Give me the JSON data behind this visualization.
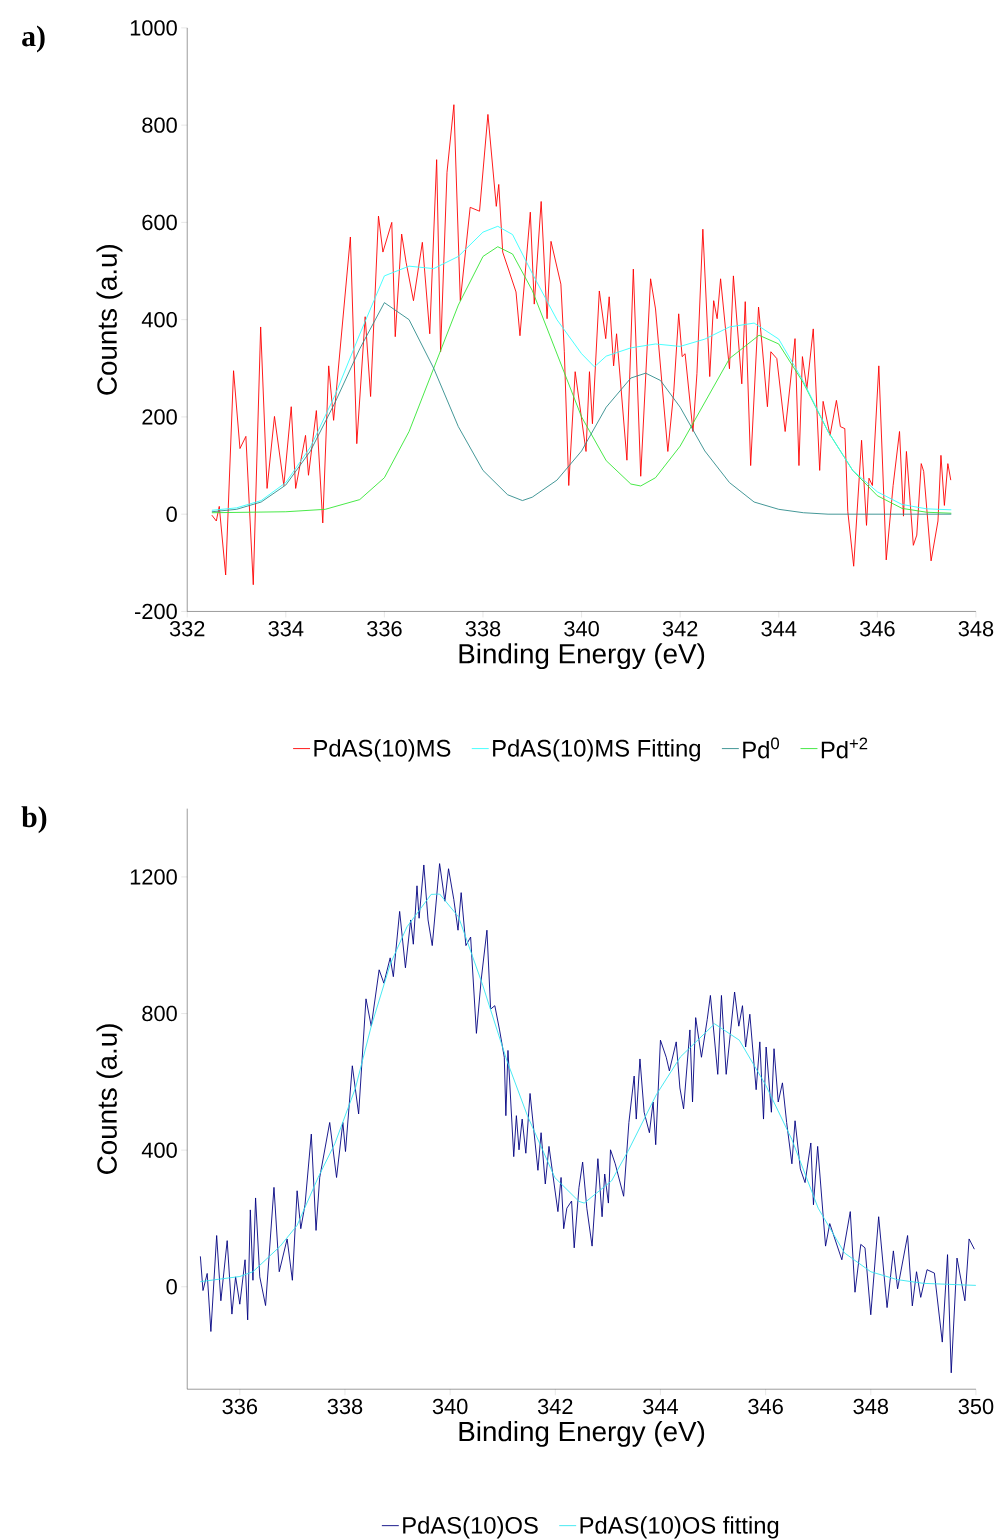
{
  "chart_data": [
    {
      "type": "line",
      "title": "a)",
      "xlabel": "Binding Energy (eV)",
      "ylabel": "Counts (a.u)",
      "xlim": [
        332,
        348
      ],
      "ylim": [
        -200,
        1000
      ],
      "xticks": [
        332,
        334,
        336,
        338,
        340,
        342,
        344,
        346,
        348
      ],
      "yticks": [
        -200,
        0,
        200,
        400,
        600,
        800,
        1000
      ],
      "legend": "bottom",
      "series": [
        {
          "name": "PdAS(10)MS",
          "color": "#ff0000",
          "x": [
            332.5,
            332.59,
            332.65,
            332.78,
            332.94,
            333.07,
            333.19,
            333.34,
            333.49,
            333.62,
            333.77,
            333.96,
            334.11,
            334.2,
            334.4,
            334.46,
            334.62,
            334.75,
            334.87,
            334.97,
            335.31,
            335.44,
            335.61,
            335.72,
            335.88,
            335.97,
            336.15,
            336.22,
            336.35,
            336.44,
            336.59,
            336.77,
            336.92,
            337.06,
            337.14,
            337.27,
            337.41,
            337.54,
            337.74,
            337.93,
            338.1,
            338.27,
            338.32,
            338.4,
            338.67,
            338.75,
            338.96,
            339.04,
            339.18,
            339.3,
            339.38,
            339.58,
            339.65,
            339.74,
            339.87,
            340.09,
            340.16,
            340.22,
            340.36,
            340.49,
            340.56,
            340.65,
            340.71,
            340.92,
            341.05,
            341.2,
            341.4,
            341.5,
            341.75,
            341.87,
            341.97,
            342.04,
            342.1,
            342.26,
            342.34,
            342.46,
            342.6,
            342.68,
            342.75,
            342.82,
            343.0,
            343.08,
            343.25,
            343.32,
            343.43,
            343.59,
            343.66,
            343.77,
            343.84,
            343.96,
            344.13,
            344.33,
            344.41,
            344.48,
            344.57,
            344.7,
            344.83,
            344.9,
            345.04,
            345.17,
            345.25,
            345.34,
            345.4,
            345.52,
            345.68,
            345.78,
            345.83,
            345.9,
            346.03,
            346.18,
            346.32,
            346.45,
            346.53,
            346.59,
            346.73,
            346.8,
            346.89,
            346.94,
            347.09,
            347.23,
            347.29,
            347.36,
            347.43,
            347.49
          ],
          "values": [
            -2,
            -14,
            16,
            -125,
            295,
            135,
            160,
            -145,
            385,
            53,
            201,
            59,
            221,
            53,
            162,
            80,
            213,
            -18,
            305,
            193,
            570,
            145,
            406,
            242,
            613,
            539,
            600,
            365,
            576,
            518,
            439,
            559,
            371,
            729,
            334,
            703,
            842,
            439,
            631,
            623,
            822,
            633,
            678,
            539,
            457,
            367,
            621,
            432,
            643,
            402,
            561,
            473,
            334,
            59,
            293,
            129,
            293,
            186,
            459,
            361,
            447,
            305,
            371,
            111,
            504,
            78,
            484,
            422,
            129,
            252,
            412,
            324,
            330,
            170,
            289,
            586,
            283,
            439,
            402,
            484,
            299,
            490,
            268,
            437,
            100,
            426,
            350,
            221,
            334,
            320,
            170,
            361,
            100,
            324,
            258,
            381,
            90,
            232,
            162,
            234,
            180,
            176,
            6,
            -107,
            152,
            -23,
            74,
            59,
            305,
            -94,
            59,
            170,
            -4,
            129,
            -64,
            -43,
            104,
            88,
            -96,
            -14,
            121,
            18,
            104,
            70
          ]
        },
        {
          "name": "PdAS(10)MS Fitting",
          "color": "#33ffff",
          "x": [
            332.5,
            333,
            333.5,
            334,
            334.5,
            335,
            335.5,
            336,
            336.5,
            337,
            337.5,
            338,
            338.3,
            338.6,
            339,
            339.5,
            340,
            340.26,
            340.5,
            341,
            341.5,
            342,
            342.5,
            343,
            343.5,
            344,
            344.5,
            345,
            345.5,
            346,
            346.5,
            347,
            347.5
          ],
          "values": [
            8,
            13,
            28,
            65,
            138,
            245,
            370,
            490,
            510,
            505,
            530,
            580,
            592,
            575,
            495,
            400,
            330,
            303,
            325,
            342,
            350,
            345,
            360,
            385,
            393,
            360,
            273,
            170,
            90,
            46,
            20,
            11,
            9
          ]
        },
        {
          "name": "Pd$^{0}$",
          "color": "#2e8b8b",
          "x": [
            332.5,
            333,
            333.5,
            334,
            334.5,
            335,
            335.5,
            336,
            336.5,
            337,
            337.5,
            338,
            338.5,
            338.8,
            339,
            339.5,
            340,
            340.5,
            341,
            341.3,
            341.6,
            342,
            342.5,
            343,
            343.5,
            344,
            344.5,
            345,
            346,
            347.5
          ],
          "values": [
            5,
            10,
            25,
            60,
            130,
            230,
            340,
            435,
            400,
            300,
            180,
            90,
            40,
            28,
            35,
            70,
            130,
            220,
            280,
            290,
            275,
            220,
            130,
            65,
            25,
            10,
            3,
            0,
            0,
            0
          ]
        },
        {
          "name": "Pd$^{+2}$",
          "color": "#33e633",
          "x": [
            332.5,
            334,
            334.8,
            335.5,
            336,
            336.5,
            337,
            337.5,
            338,
            338.3,
            338.6,
            339,
            339.5,
            340,
            340.5,
            341,
            341.2,
            341.5,
            342,
            342.5,
            343,
            343.6,
            344,
            344.5,
            345,
            345.5,
            346,
            346.5,
            347,
            347.5
          ],
          "values": [
            3,
            5,
            10,
            30,
            75,
            170,
            300,
            430,
            530,
            550,
            535,
            460,
            330,
            200,
            110,
            62,
            58,
            75,
            140,
            230,
            320,
            368,
            350,
            270,
            170,
            90,
            38,
            12,
            4,
            2
          ]
        }
      ]
    },
    {
      "type": "line",
      "title": "b)",
      "xlabel": "Binding Energy (eV)",
      "ylabel": "Counts (a.u)",
      "xlim": [
        335,
        350
      ],
      "ylim": [
        -300,
        1400
      ],
      "xticks": [
        336,
        338,
        340,
        342,
        344,
        346,
        348,
        350
      ],
      "yticks": [
        0,
        400,
        800,
        1200
      ],
      "legend": "bottom",
      "series": [
        {
          "name": "PdAS(10)OS",
          "color": "#000080",
          "x": [
            335.25,
            335.3,
            335.38,
            335.45,
            335.56,
            335.64,
            335.76,
            335.85,
            335.92,
            336.0,
            336.1,
            336.15,
            336.2,
            336.25,
            336.3,
            336.38,
            336.49,
            336.65,
            336.75,
            336.9,
            337.0,
            337.09,
            337.16,
            337.24,
            337.36,
            337.45,
            337.52,
            337.71,
            337.84,
            337.96,
            338.01,
            338.14,
            338.26,
            338.4,
            338.5,
            338.65,
            338.74,
            338.86,
            338.92,
            339.04,
            339.15,
            339.25,
            339.3,
            339.37,
            339.41,
            339.5,
            339.58,
            339.66,
            339.8,
            339.9,
            339.97,
            340.07,
            340.15,
            340.21,
            340.3,
            340.39,
            340.5,
            340.59,
            340.7,
            340.77,
            340.85,
            340.94,
            341.03,
            341.06,
            341.1,
            341.21,
            341.26,
            341.31,
            341.37,
            341.44,
            341.52,
            341.67,
            341.73,
            341.81,
            341.88,
            342.05,
            342.11,
            342.16,
            342.22,
            342.31,
            342.36,
            342.45,
            342.52,
            342.6,
            342.7,
            342.81,
            342.89,
            342.94,
            343.01,
            343.05,
            343.14,
            343.3,
            343.4,
            343.5,
            343.54,
            343.61,
            343.69,
            343.79,
            343.86,
            343.91,
            344.0,
            344.11,
            344.17,
            344.3,
            344.37,
            344.44,
            344.56,
            344.61,
            344.67,
            344.78,
            344.89,
            344.95,
            345.09,
            345.16,
            345.25,
            345.41,
            345.49,
            345.56,
            345.62,
            345.7,
            345.82,
            345.89,
            345.96,
            346.01,
            346.11,
            346.16,
            346.24,
            346.32,
            346.4,
            346.5,
            346.56,
            346.66,
            346.75,
            346.86,
            346.91,
            346.99,
            347.14,
            347.22,
            347.45,
            347.61,
            347.7,
            347.81,
            347.89,
            348.0,
            348.15,
            348.31,
            348.43,
            348.51,
            348.7,
            348.79,
            348.87,
            348.95,
            349.07,
            349.21,
            349.36,
            349.46,
            349.53,
            349.64,
            349.79,
            349.87,
            349.97
          ],
          "values": [
            89,
            -11,
            39,
            -131,
            150,
            -41,
            135,
            -80,
            29,
            -51,
            79,
            -97,
            225,
            19,
            260,
            29,
            -55,
            291,
            44,
            140,
            19,
            281,
            170,
            240,
            447,
            165,
            320,
            481,
            320,
            481,
            396,
            647,
            506,
            843,
            763,
            928,
            889,
            963,
            908,
            1099,
            934,
            1074,
            1003,
            1174,
            1079,
            1235,
            1074,
            999,
            1239,
            1129,
            1224,
            1134,
            1044,
            1154,
            999,
            1024,
            742,
            898,
            1044,
            813,
            823,
            752,
            672,
            501,
            692,
            381,
            501,
            401,
            491,
            391,
            566,
            341,
            451,
            301,
            411,
            220,
            320,
            170,
            230,
            251,
            114,
            290,
            365,
            230,
            119,
            375,
            205,
            330,
            245,
            401,
            360,
            265,
            481,
            617,
            491,
            667,
            511,
            451,
            541,
            416,
            722,
            672,
            632,
            717,
            582,
            521,
            752,
            541,
            788,
            672,
            783,
            853,
            622,
            853,
            622,
            863,
            763,
            823,
            702,
            798,
            577,
            717,
            491,
            702,
            511,
            697,
            541,
            597,
            481,
            360,
            486,
            345,
            305,
            421,
            240,
            411,
            119,
            185,
            79,
            220,
            -16,
            124,
            114,
            -82,
            205,
            -61,
            105,
            -6,
            150,
            -56,
            44,
            -31,
            50,
            40,
            -162,
            94,
            -252,
            84,
            -41,
            140,
            110
          ]
        },
        {
          "name": "PdAS(10)OS fitting",
          "color": "#33e6f0",
          "x": [
            335.25,
            335.5,
            336,
            336.25,
            336.77,
            337.09,
            337.49,
            337.81,
            338.2,
            338.5,
            338.86,
            339.18,
            339.64,
            339.8,
            340.16,
            340.62,
            341.08,
            341.47,
            341.99,
            342.45,
            342.55,
            343.07,
            343.4,
            343.92,
            344.38,
            345.03,
            345.5,
            346,
            346.5,
            347,
            347.5,
            348,
            348.5,
            349,
            350
          ],
          "values": [
            15,
            20,
            30,
            44,
            119,
            180,
            320,
            420,
            582,
            763,
            944,
            1054,
            1149,
            1150,
            1083,
            883,
            662,
            501,
            320,
            250,
            245,
            310,
            402,
            562,
            673,
            770,
            722,
            591,
            431,
            230,
            99,
            44,
            21,
            10,
            4
          ]
        }
      ]
    }
  ]
}
